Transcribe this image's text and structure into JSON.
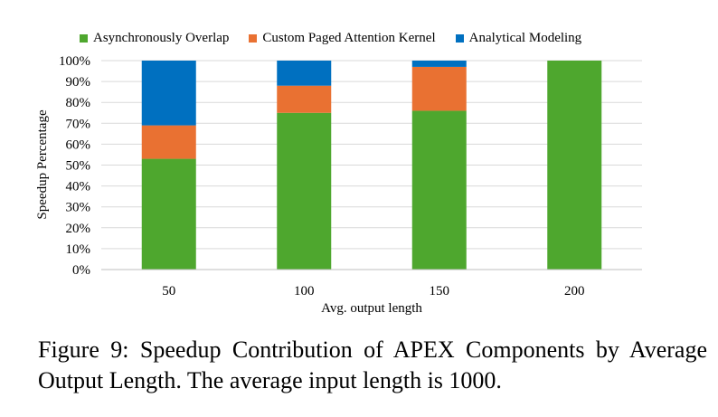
{
  "chart_data": {
    "type": "bar",
    "stacked": true,
    "normalized": true,
    "categories": [
      "50",
      "100",
      "150",
      "200"
    ],
    "series": [
      {
        "name": "Asynchronously Overlap",
        "color": "#4ea72e",
        "values": [
          53,
          75,
          76,
          100
        ]
      },
      {
        "name": "Custom Paged Attention Kernel",
        "color": "#e97132",
        "values": [
          16,
          13,
          21,
          0
        ]
      },
      {
        "name": "Analytical Modeling",
        "color": "#0070c0",
        "values": [
          31,
          12,
          3,
          0
        ]
      }
    ],
    "xlabel": "Avg. output length",
    "ylabel": "Speedup Percentage",
    "ylim": [
      0,
      100
    ],
    "yticks": [
      "0%",
      "10%",
      "20%",
      "30%",
      "40%",
      "50%",
      "60%",
      "70%",
      "80%",
      "90%",
      "100%"
    ],
    "grid": true,
    "legend_position": "top"
  },
  "caption": "Figure 9: Speedup Contribution of APEX Components by Average Output Length. The average input length is 1000."
}
